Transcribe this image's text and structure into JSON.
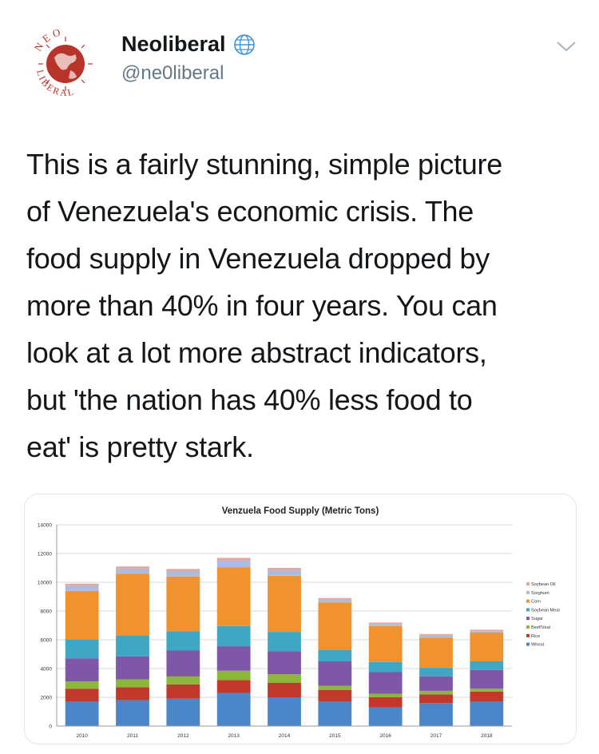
{
  "account": {
    "display_name": "Neoliberal",
    "handle": "@ne0liberal",
    "avatar_text": "NEO LIBERAL",
    "verified_icon": "globe-icon",
    "menu_icon": "chevron-down-icon"
  },
  "tweet": {
    "lines": [
      "This is a fairly stunning, simple picture",
      "of Venezuela's economic crisis.  The",
      "food supply in Venezuela dropped by",
      "more than 40% in four years. You can",
      "look at a lot more abstract indicators,",
      "but 'the nation has 40% less food to",
      "eat' is pretty stark."
    ]
  },
  "colors": {
    "text": "#14171a",
    "secondary": "#657786",
    "avatar_red": "#c0392b"
  },
  "chart_data": {
    "type": "bar",
    "stacked": true,
    "title": "Venzuela Food Supply (Metric Tons)",
    "xlabel": "",
    "ylabel": "",
    "ylim": [
      0,
      14000
    ],
    "yticks": [
      "0",
      "2000",
      "4000",
      "6000",
      "8000",
      "10000",
      "12000",
      "14000"
    ],
    "grid": true,
    "legend_position": "right",
    "categories": [
      "2010",
      "2011",
      "2012",
      "2013",
      "2014",
      "2015",
      "2016",
      "2017",
      "2018"
    ],
    "series": [
      {
        "name": "Wheat",
        "color": "#4a86c8",
        "values": [
          1700,
          1800,
          1900,
          2300,
          2000,
          1700,
          1300,
          1600,
          1700
        ]
      },
      {
        "name": "Rice",
        "color": "#c0392b",
        "values": [
          900,
          900,
          1000,
          900,
          1000,
          800,
          700,
          600,
          700
        ]
      },
      {
        "name": "Beef/Veal",
        "color": "#8bb83a",
        "values": [
          500,
          550,
          550,
          650,
          600,
          300,
          250,
          250,
          200
        ]
      },
      {
        "name": "Sugar",
        "color": "#7e57a8",
        "values": [
          1600,
          1600,
          1800,
          1700,
          1600,
          1700,
          1500,
          1000,
          1300
        ]
      },
      {
        "name": "Soybean Meal",
        "color": "#3fa7c4",
        "values": [
          1300,
          1450,
          1350,
          1400,
          1350,
          800,
          700,
          600,
          600
        ]
      },
      {
        "name": "Corn",
        "color": "#f0922e",
        "values": [
          3400,
          4300,
          3800,
          4100,
          3900,
          3300,
          2500,
          2100,
          2000
        ]
      },
      {
        "name": "Sorghum",
        "color": "#a9bde0",
        "values": [
          350,
          350,
          350,
          450,
          350,
          180,
          150,
          150,
          100
        ]
      },
      {
        "name": "Soybean Oil",
        "color": "#e2a9a3",
        "values": [
          150,
          150,
          180,
          200,
          200,
          120,
          100,
          100,
          100
        ]
      }
    ]
  }
}
